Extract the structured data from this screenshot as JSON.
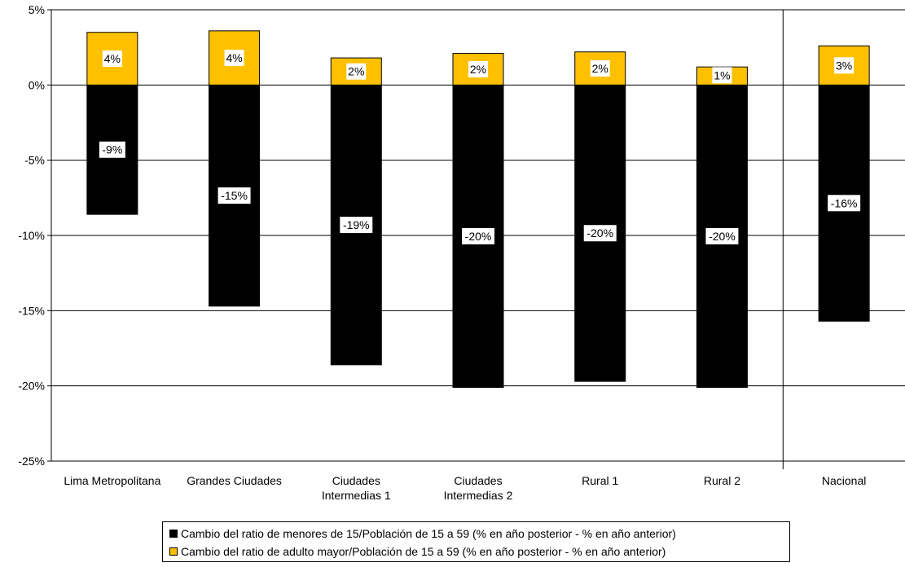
{
  "chart_data": {
    "type": "bar",
    "stacked": true,
    "categories": [
      [
        "Lima Metropolitana"
      ],
      [
        "Grandes Ciudades"
      ],
      [
        "Ciudades",
        "Intermedias 1"
      ],
      [
        "Ciudades",
        "Intermedias 2"
      ],
      [
        "Rural 1"
      ],
      [
        "Rural 2"
      ],
      [
        "Nacional"
      ]
    ],
    "series": [
      {
        "name": "Cambio del ratio de menores de 15/Población de 15 a 59  (% en año posterior - % en año anterior)",
        "color": "#000000",
        "values": [
          -8.6,
          -14.7,
          -18.6,
          -20.1,
          -19.7,
          -20.1,
          -15.7
        ],
        "labels": [
          "-9%",
          "-15%",
          "-19%",
          "-20%",
          "-20%",
          "-20%",
          "-16%"
        ]
      },
      {
        "name": "Cambio del ratio de adulto mayor/Población de 15 a 59 (% en año posterior - % en año anterior)",
        "color": "#FFC000",
        "values": [
          3.5,
          3.6,
          1.8,
          2.1,
          2.2,
          1.2,
          2.6
        ],
        "labels": [
          "4%",
          "4%",
          "2%",
          "2%",
          "2%",
          "1%",
          "3%"
        ]
      }
    ],
    "yticks": [
      "5%",
      "0%",
      "-5%",
      "-10%",
      "-15%",
      "-20%",
      "-25%"
    ],
    "ylim": [
      -25,
      5
    ],
    "grid": true,
    "legend_position": "bottom"
  }
}
